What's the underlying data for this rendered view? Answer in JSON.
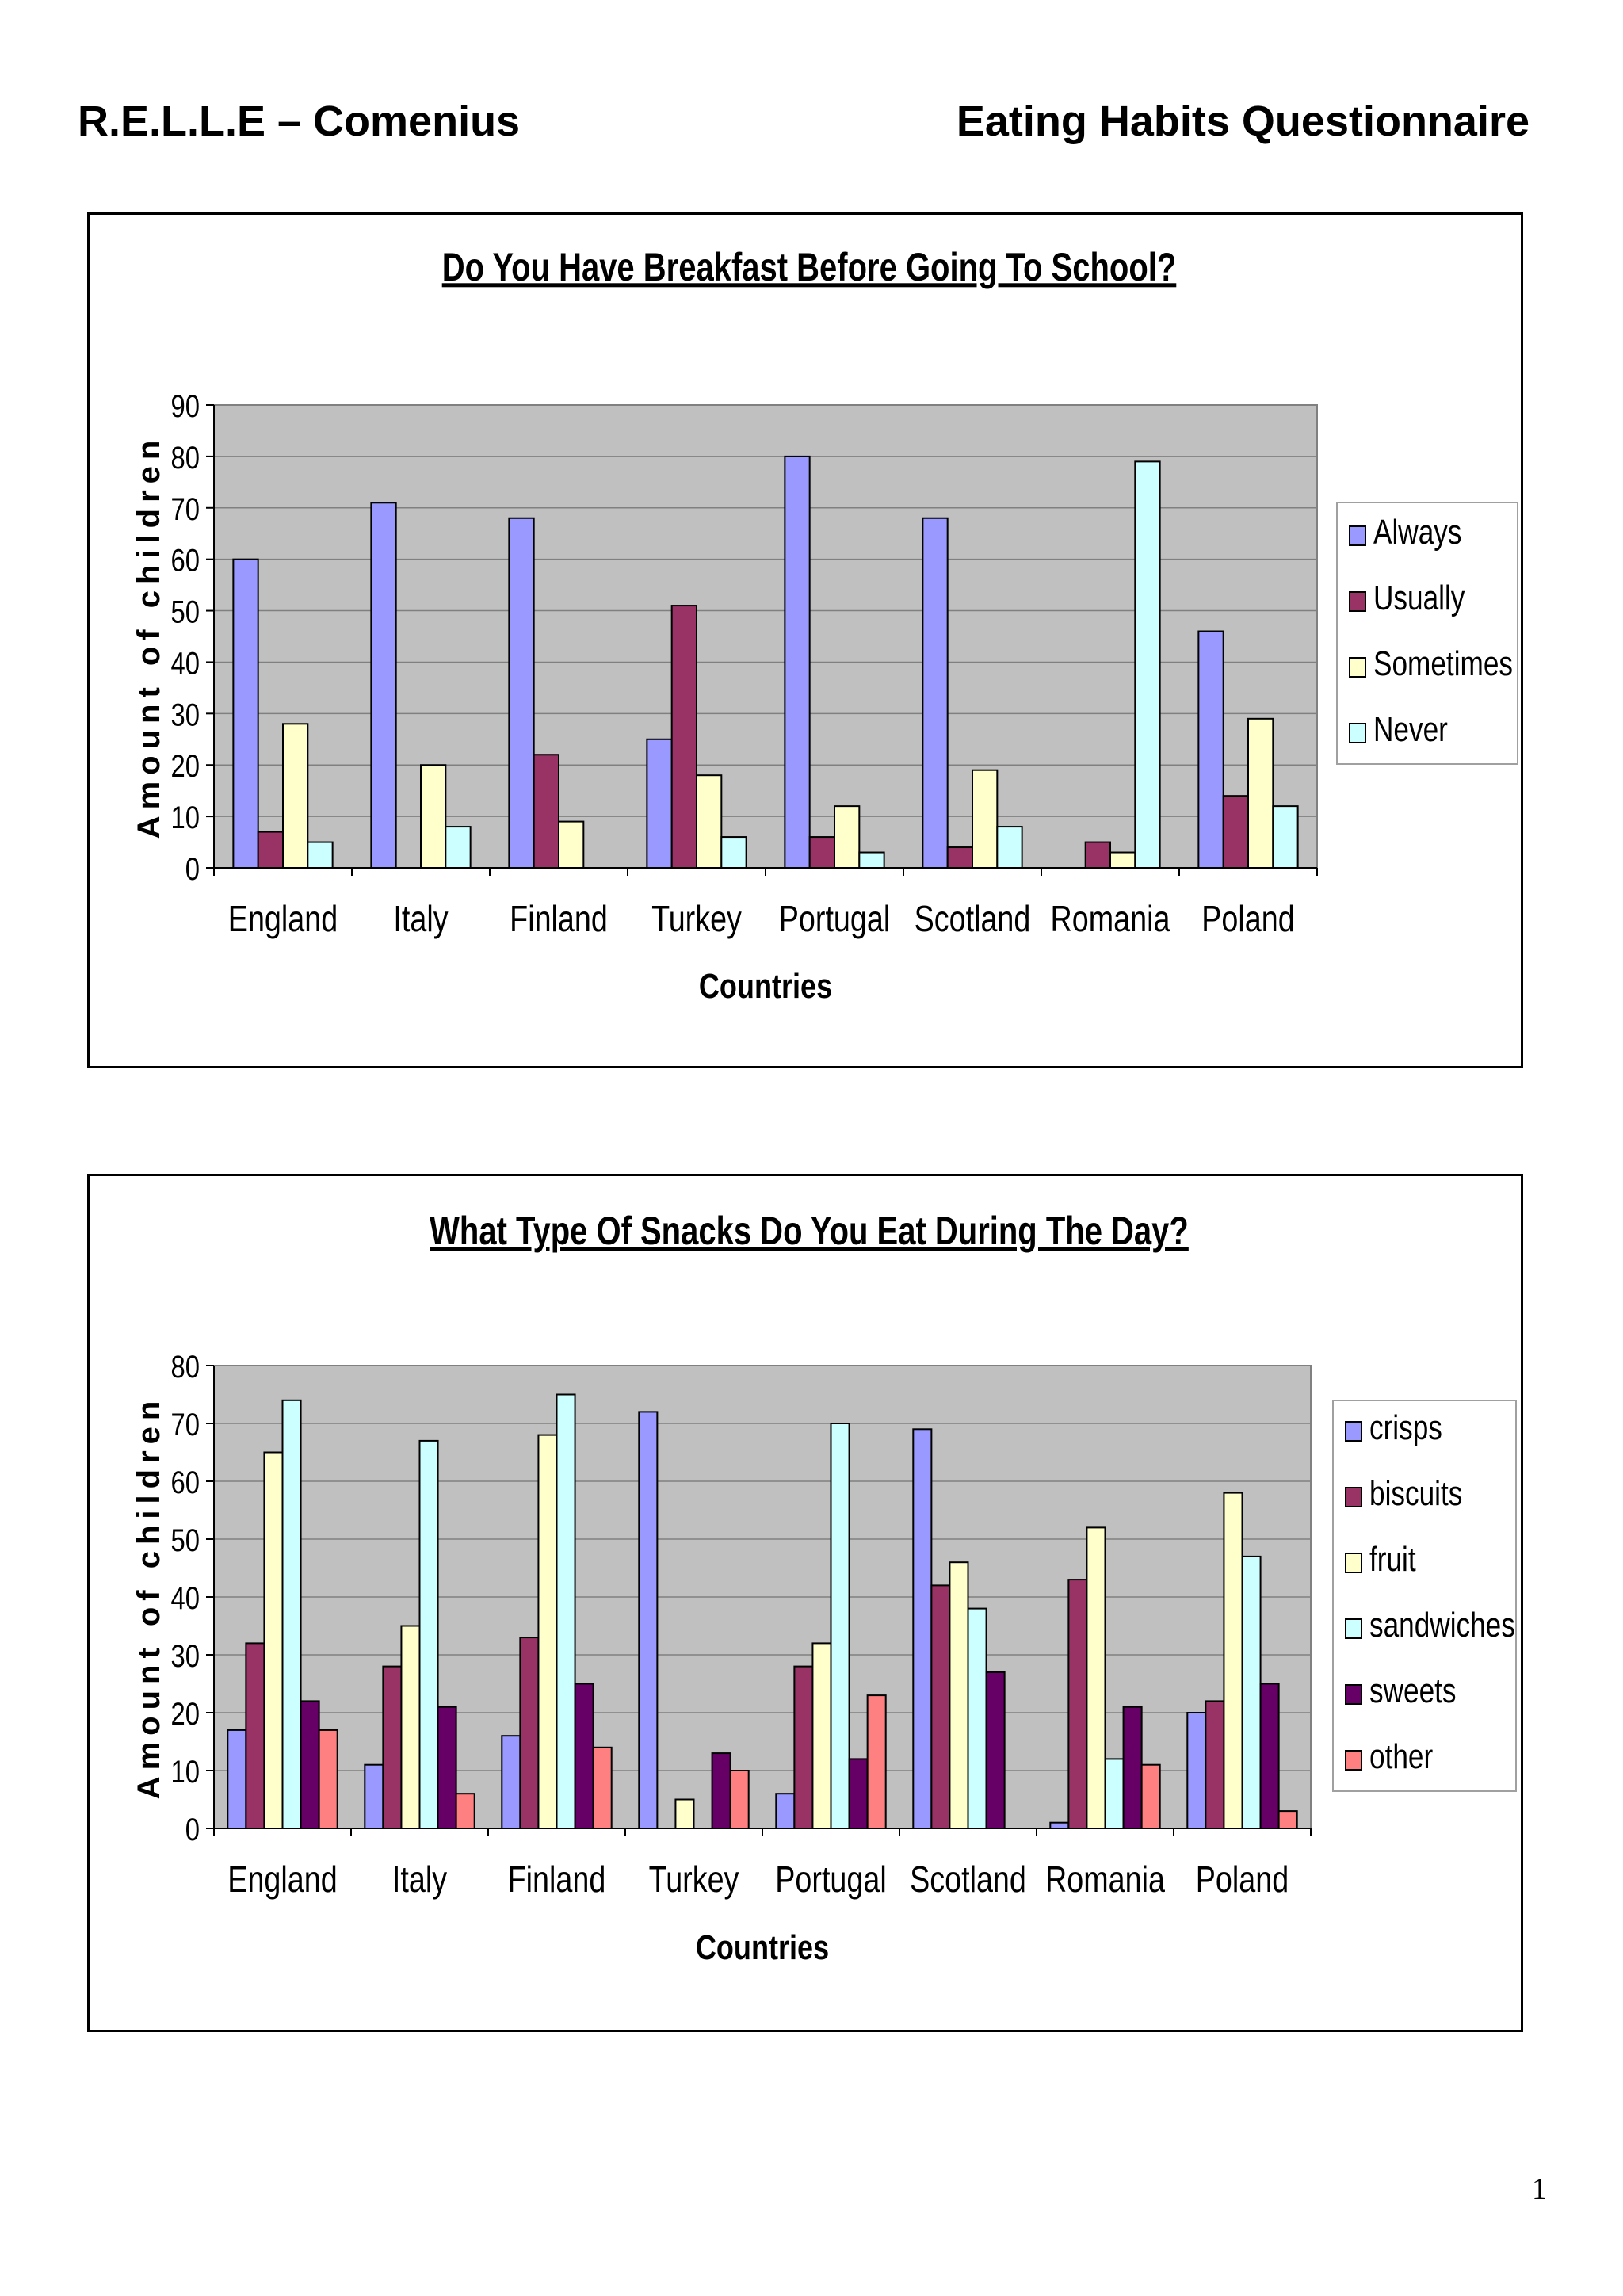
{
  "header": {
    "left": "R.E.L.L.E – Comenius",
    "right": "Eating Habits Questionnaire"
  },
  "page_number": "1",
  "colors": {
    "plot_background": "#c0c0c0",
    "gridline": "#808080",
    "Always": "#9999ff",
    "Usually": "#993366",
    "Sometimes": "#ffffcc",
    "Never": "#ccffff",
    "crisps": "#9999ff",
    "biscuits": "#993366",
    "fruit": "#ffffcc",
    "sandwiches": "#ccffff",
    "sweets": "#660066",
    "other": "#ff8080"
  },
  "chart_data": [
    {
      "type": "bar",
      "title": "Do You Have Breakfast Before Going To School?",
      "xlabel": "Countries",
      "ylabel": "Amount of children",
      "ylim": [
        0,
        90
      ],
      "yticks": [
        0,
        10,
        20,
        30,
        40,
        50,
        60,
        70,
        80,
        90
      ],
      "grid": true,
      "legend": "right",
      "categories": [
        "England",
        "Italy",
        "Finland",
        "Turkey",
        "Portugal",
        "Scotland",
        "Romania",
        "Poland"
      ],
      "series": [
        {
          "name": "Always",
          "values": [
            60,
            71,
            68,
            25,
            80,
            68,
            0,
            46
          ]
        },
        {
          "name": "Usually",
          "values": [
            7,
            0,
            22,
            51,
            6,
            4,
            5,
            14
          ]
        },
        {
          "name": "Sometimes",
          "values": [
            28,
            20,
            9,
            18,
            12,
            19,
            3,
            29
          ]
        },
        {
          "name": "Never",
          "values": [
            5,
            8,
            0,
            6,
            3,
            8,
            79,
            12
          ]
        }
      ]
    },
    {
      "type": "bar",
      "title": "What Type Of Snacks Do You Eat During The Day?",
      "xlabel": "Countries",
      "ylabel": "Amount of children",
      "ylim": [
        0,
        80
      ],
      "yticks": [
        0,
        10,
        20,
        30,
        40,
        50,
        60,
        70,
        80
      ],
      "grid": true,
      "legend": "right",
      "categories": [
        "England",
        "Italy",
        "Finland",
        "Turkey",
        "Portugal",
        "Scotland",
        "Romania",
        "Poland"
      ],
      "series": [
        {
          "name": "crisps",
          "values": [
            17,
            11,
            16,
            72,
            6,
            69,
            1,
            20
          ]
        },
        {
          "name": "biscuits",
          "values": [
            32,
            28,
            33,
            0,
            28,
            42,
            43,
            22
          ]
        },
        {
          "name": "fruit",
          "values": [
            65,
            35,
            68,
            5,
            32,
            46,
            52,
            58
          ]
        },
        {
          "name": "sandwiches",
          "values": [
            74,
            67,
            75,
            0,
            70,
            38,
            12,
            47
          ]
        },
        {
          "name": "sweets",
          "values": [
            22,
            21,
            25,
            13,
            12,
            27,
            21,
            25
          ]
        },
        {
          "name": "other",
          "values": [
            17,
            6,
            14,
            10,
            23,
            0,
            11,
            3
          ]
        }
      ]
    }
  ]
}
